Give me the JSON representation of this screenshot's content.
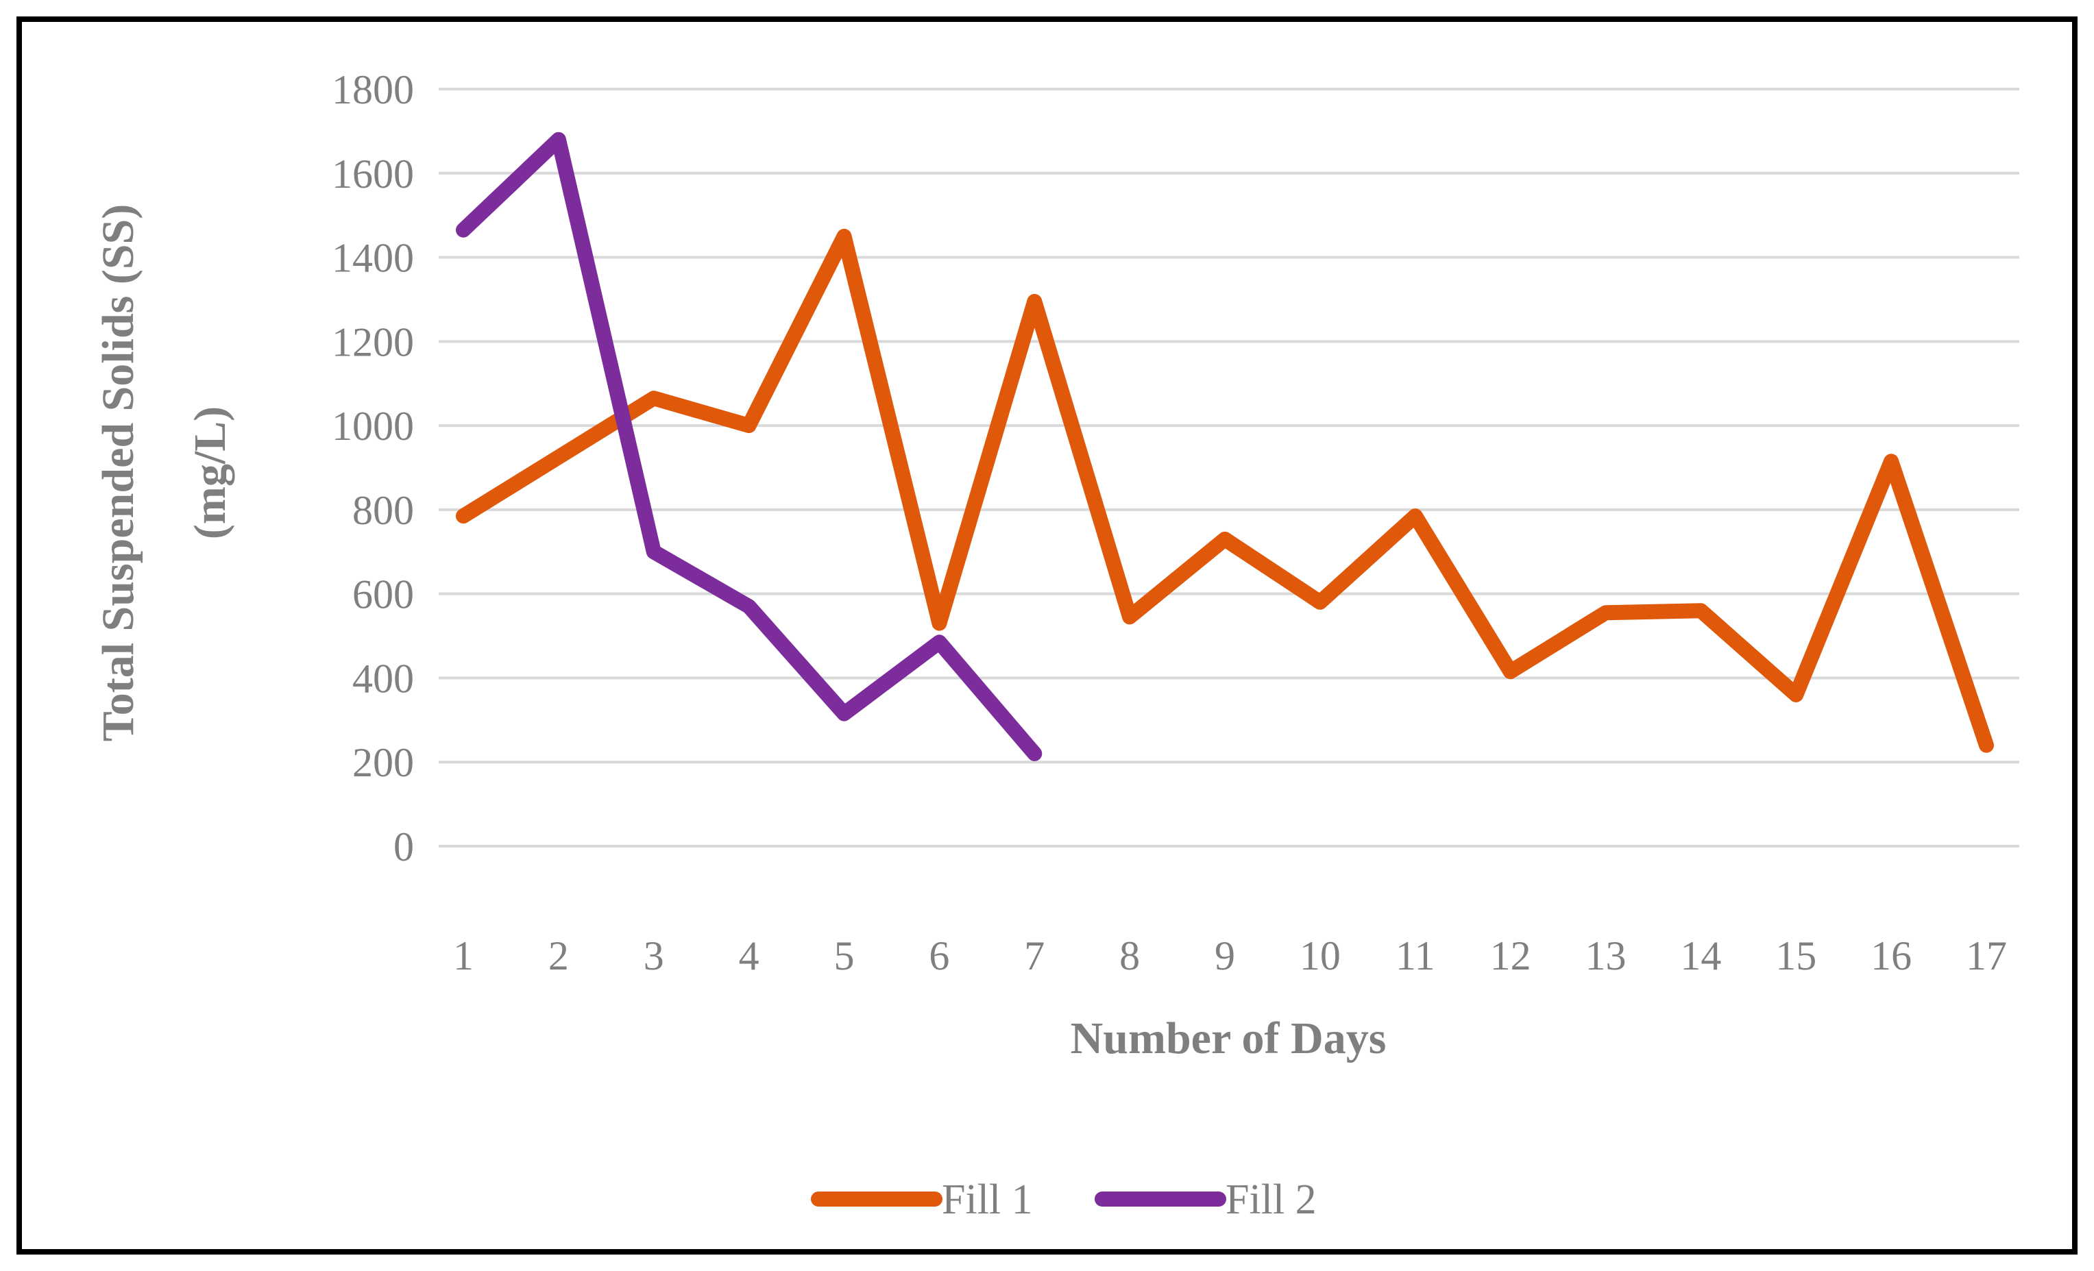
{
  "figure": {
    "background_color": "#FFFFFF",
    "border_color": "#000000",
    "gridline_color": "#D9D9D9",
    "text_color": "#7F7F7F"
  },
  "chart_data": {
    "type": "line",
    "title": "",
    "xlabel": "Number of Days",
    "ylabel_line1": "Total Suspended Solids (SS)",
    "ylabel_line2": "(mg/L)",
    "x": [
      1,
      2,
      3,
      4,
      5,
      6,
      7,
      8,
      9,
      10,
      11,
      12,
      13,
      14,
      15,
      16,
      17
    ],
    "x_labels": [
      "1",
      "2",
      "3",
      "4",
      "5",
      "6",
      "7",
      "8",
      "9",
      "10",
      "11",
      "12",
      "13",
      "14",
      "15",
      "16",
      "17"
    ],
    "ylim": [
      0,
      1800
    ],
    "yticks": [
      0,
      200,
      400,
      600,
      800,
      1000,
      1200,
      1400,
      1600,
      1800
    ],
    "ytick_labels": [
      "0",
      "200",
      "400",
      "600",
      "800",
      "1000",
      "1200",
      "1400",
      "1600",
      "1800"
    ],
    "grid": "horizontal",
    "legend_position": "bottom-center",
    "series": [
      {
        "name": "Fill 1",
        "color": "#E0580A",
        "values": [
          785,
          925,
          1065,
          1000,
          1450,
          530,
          1295,
          545,
          730,
          580,
          785,
          415,
          555,
          560,
          360,
          915,
          240
        ]
      },
      {
        "name": "Fill 2",
        "color": "#7D2D9B",
        "values": [
          1465,
          1680,
          700,
          570,
          315,
          485,
          220
        ]
      }
    ]
  }
}
